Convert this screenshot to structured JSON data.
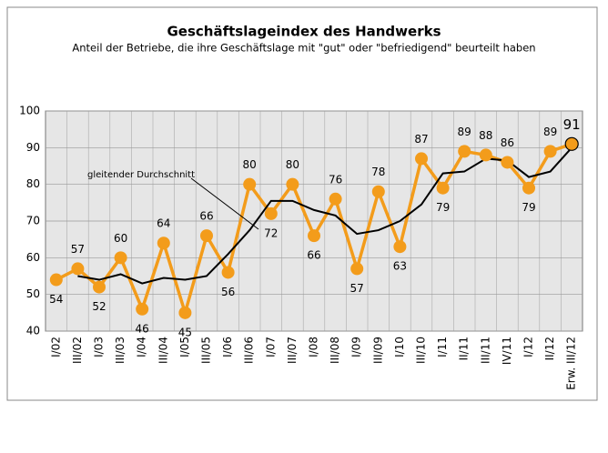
{
  "chart_data": {
    "type": "line",
    "title": "Geschäftslageindex des Handwerks",
    "subtitle": "Anteil der Betriebe, die ihre Geschäftslage mit \"gut\" oder \"befriedigend\" beurteilt haben",
    "annotation": "gleitender Durchschnitt",
    "categories": [
      "I/02",
      "III/02",
      "I/03",
      "III/03",
      "I/04",
      "III/04",
      "I/05",
      "III/05",
      "I/06",
      "III/06",
      "I/07",
      "III/07",
      "I/08",
      "III/08",
      "I/09",
      "III/09",
      "I/10",
      "III/10",
      "I/11",
      "II/11",
      "III/11",
      "IV/11",
      "I/12",
      "II/12",
      "Erw. III/12"
    ],
    "series": [
      {
        "color": "#f39c1b",
        "values": [
          54,
          57,
          52,
          60,
          46,
          64,
          45,
          66,
          56,
          80,
          72,
          80,
          66,
          76,
          57,
          78,
          63,
          87,
          79,
          89,
          88,
          86,
          79,
          89,
          91
        ]
      },
      {
        "color": "#000000",
        "values": [
          null,
          55,
          54,
          55.5,
          53,
          54.5,
          54,
          55,
          61,
          67.5,
          75.5,
          75.5,
          73,
          71.5,
          66.5,
          67.5,
          70,
          74.5,
          83,
          83.5,
          87,
          86.5,
          82,
          83.5,
          90
        ]
      }
    ],
    "ylim": [
      40,
      100
    ],
    "yticks": [
      40,
      50,
      60,
      70,
      80,
      90,
      100
    ],
    "grid": true
  }
}
